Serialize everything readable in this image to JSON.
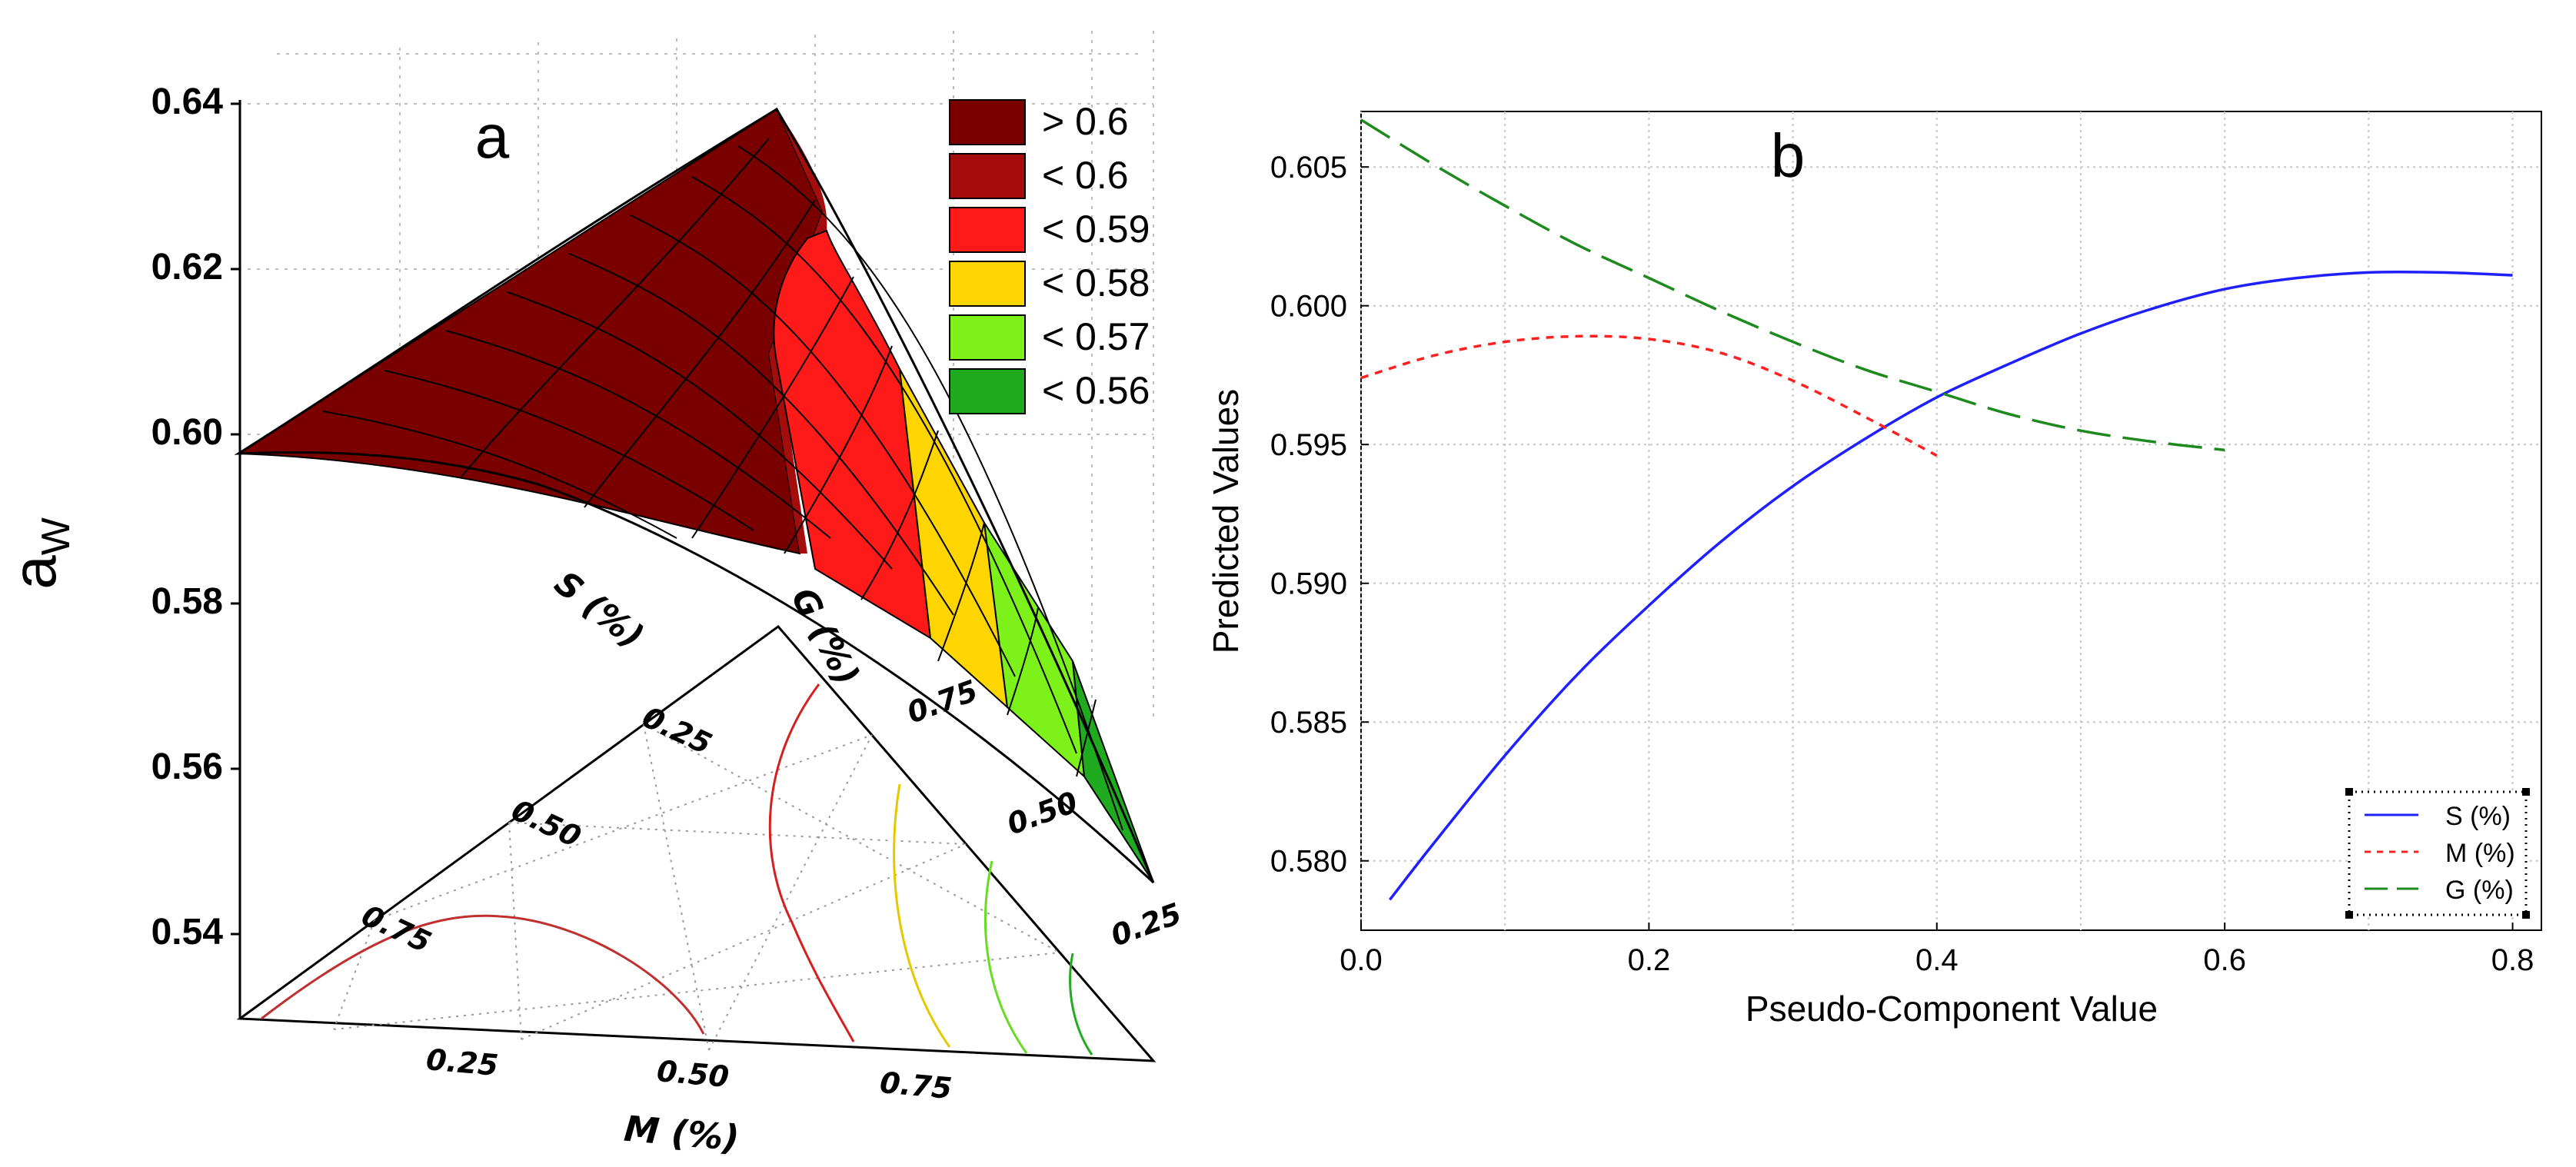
{
  "chart_data": [
    {
      "type": "surface",
      "panel_label": "a",
      "zlabel": "a",
      "zlabel_sub": "W",
      "zlim": [
        0.53,
        0.64
      ],
      "z_ticks": [
        "0.54",
        "0.56",
        "0.58",
        "0.60",
        "0.62",
        "0.64"
      ],
      "ternary_axes": {
        "M": {
          "label": "M (%)",
          "ticks": [
            "0.25",
            "0.50",
            "0.75"
          ]
        },
        "S": {
          "label": "S (%)",
          "ticks": [
            "0.25",
            "0.50",
            "0.75"
          ]
        },
        "G": {
          "label": "G (%)",
          "ticks": [
            "0.75",
            "0.50",
            "0.25"
          ]
        }
      },
      "legend": [
        {
          "label": "> 0.6",
          "color": "#7a0000"
        },
        {
          "label": "< 0.6",
          "color": "#a50d0d"
        },
        {
          "label": "< 0.59",
          "color": "#ff1a1a"
        },
        {
          "label": "< 0.58",
          "color": "#ffd500"
        },
        {
          "label": "< 0.57",
          "color": "#7df21a"
        },
        {
          "label": "< 0.56",
          "color": "#1faa1f"
        }
      ],
      "legend_position": "top-right",
      "surface_extremes": [
        {
          "vertex": "S",
          "value": 0.598
        },
        {
          "vertex": "M",
          "value": 0.636
        },
        {
          "vertex": "G",
          "value": 0.545
        }
      ]
    },
    {
      "type": "line",
      "panel_label": "b",
      "xlabel": "Pseudo-Component Value",
      "ylabel": "Predicted Values",
      "xlim": [
        0.0,
        0.82
      ],
      "ylim": [
        0.5775,
        0.607
      ],
      "x_ticks": [
        0.0,
        0.2,
        0.4,
        0.6,
        0.8
      ],
      "x_tick_labels": [
        "0.0",
        "0.2",
        "0.4",
        "0.6",
        "0.8"
      ],
      "y_ticks": [
        0.58,
        0.585,
        0.59,
        0.595,
        0.6,
        0.605
      ],
      "y_tick_labels": [
        "0.580",
        "0.585",
        "0.590",
        "0.595",
        "0.600",
        "0.605"
      ],
      "grid": true,
      "legend_position": "bottom-right",
      "series": [
        {
          "name": "S (%)",
          "color": "#1f1fff",
          "dash": "solid",
          "x": [
            0.02,
            0.05,
            0.1,
            0.15,
            0.2,
            0.25,
            0.3,
            0.35,
            0.4,
            0.45,
            0.5,
            0.55,
            0.6,
            0.65,
            0.7,
            0.75,
            0.8
          ],
          "y": [
            0.5786,
            0.5806,
            0.5838,
            0.5867,
            0.5892,
            0.5915,
            0.5935,
            0.5952,
            0.5967,
            0.5979,
            0.599,
            0.5999,
            0.6006,
            0.601,
            0.6012,
            0.6012,
            0.6011
          ]
        },
        {
          "name": "M (%)",
          "color": "#ff2020",
          "dash": "dotted",
          "x": [
            0.0,
            0.05,
            0.1,
            0.15,
            0.2,
            0.25,
            0.3,
            0.35,
            0.4
          ],
          "y": [
            0.5974,
            0.5982,
            0.5987,
            0.5989,
            0.5988,
            0.5983,
            0.5973,
            0.596,
            0.5946
          ]
        },
        {
          "name": "G (%)",
          "color": "#1e8a1e",
          "dash": "dashed",
          "x": [
            0.0,
            0.05,
            0.1,
            0.15,
            0.2,
            0.25,
            0.3,
            0.35,
            0.4,
            0.45,
            0.5,
            0.55,
            0.6
          ],
          "y": [
            0.6067,
            0.6051,
            0.6036,
            0.6022,
            0.601,
            0.5998,
            0.5987,
            0.5977,
            0.5969,
            0.5961,
            0.5955,
            0.5951,
            0.5948
          ]
        }
      ]
    }
  ]
}
